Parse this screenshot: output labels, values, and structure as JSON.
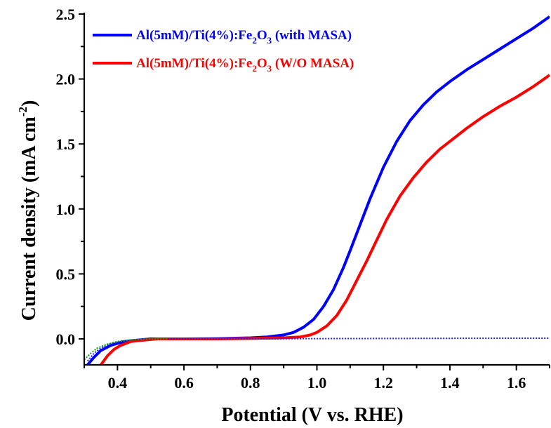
{
  "chart_data": {
    "type": "line",
    "xlabel": "Potential (V vs. RHE)",
    "ylabel": "Current density (mA cm",
    "ylabel_sup": "-2",
    "ylabel_close": ")",
    "xlim": [
      0.3,
      1.7
    ],
    "ylim": [
      -0.2,
      2.5
    ],
    "xticks": [
      "0.4",
      "0.6",
      "0.8",
      "1.0",
      "1.2",
      "1.4",
      "1.6"
    ],
    "xtick_values": [
      0.4,
      0.6,
      0.8,
      1.0,
      1.2,
      1.4,
      1.6
    ],
    "yticks": [
      "0.0",
      "0.5",
      "1.0",
      "1.5",
      "2.0",
      "2.5"
    ],
    "ytick_values": [
      0.0,
      0.5,
      1.0,
      1.5,
      2.0,
      2.5
    ],
    "legend_placement": "top-left",
    "series": [
      {
        "name": "Al(5mM)/Ti(4%):Fe2O3 (with MASA)",
        "legend_parts": [
          "Al(5mM)/Ti(4%):Fe",
          "2",
          "O",
          "3",
          " (with MASA)"
        ],
        "color": "#0000ff",
        "style": "solid",
        "x": [
          0.31,
          0.33,
          0.35,
          0.38,
          0.42,
          0.46,
          0.5,
          0.6,
          0.7,
          0.8,
          0.85,
          0.9,
          0.93,
          0.96,
          0.99,
          1.02,
          1.05,
          1.08,
          1.1,
          1.13,
          1.16,
          1.2,
          1.24,
          1.28,
          1.32,
          1.36,
          1.4,
          1.45,
          1.5,
          1.55,
          1.6,
          1.65,
          1.7
        ],
        "y": [
          -0.2,
          -0.14,
          -0.09,
          -0.05,
          -0.02,
          -0.01,
          0.0,
          0.0,
          0.002,
          0.008,
          0.015,
          0.03,
          0.05,
          0.09,
          0.15,
          0.25,
          0.38,
          0.55,
          0.68,
          0.88,
          1.08,
          1.32,
          1.52,
          1.68,
          1.8,
          1.9,
          1.98,
          2.07,
          2.15,
          2.23,
          2.31,
          2.39,
          2.48
        ]
      },
      {
        "name": "Al(5mM)/Ti(4%):Fe2O3 (W/O MASA)",
        "legend_parts": [
          "Al(5mM)/Ti(4%):Fe",
          "2",
          "O",
          "3",
          " (W/O MASA)"
        ],
        "color": "#ff0000",
        "style": "solid",
        "x": [
          0.35,
          0.37,
          0.39,
          0.41,
          0.44,
          0.48,
          0.52,
          0.6,
          0.7,
          0.8,
          0.9,
          0.95,
          0.98,
          1.0,
          1.03,
          1.06,
          1.09,
          1.12,
          1.15,
          1.18,
          1.21,
          1.25,
          1.29,
          1.33,
          1.37,
          1.41,
          1.45,
          1.5,
          1.55,
          1.6,
          1.65,
          1.7
        ],
        "y": [
          -0.2,
          -0.13,
          -0.08,
          -0.05,
          -0.02,
          -0.01,
          0.0,
          0.0,
          0.0,
          0.003,
          0.008,
          0.015,
          0.03,
          0.05,
          0.1,
          0.18,
          0.3,
          0.45,
          0.6,
          0.76,
          0.92,
          1.1,
          1.24,
          1.36,
          1.46,
          1.54,
          1.62,
          1.71,
          1.79,
          1.86,
          1.94,
          2.03
        ]
      },
      {
        "name": "",
        "color": "#2222ff",
        "style": "dotted",
        "x": [
          0.31,
          0.33,
          0.35,
          0.38,
          0.42,
          0.46,
          0.5,
          0.6,
          0.8,
          1.0,
          1.2,
          1.4,
          1.6,
          1.7
        ],
        "y": [
          -0.17,
          -0.11,
          -0.07,
          -0.035,
          -0.015,
          -0.005,
          0.0,
          0.0,
          0.0,
          0.002,
          0.003,
          0.004,
          0.005,
          0.005
        ]
      },
      {
        "name": "",
        "color": "#00aa00",
        "style": "dotted",
        "x": [
          0.3,
          0.32,
          0.34,
          0.37,
          0.4,
          0.44,
          0.48,
          0.55
        ],
        "y": [
          -0.16,
          -0.11,
          -0.07,
          -0.04,
          -0.02,
          -0.008,
          -0.002,
          0.0
        ]
      }
    ]
  }
}
